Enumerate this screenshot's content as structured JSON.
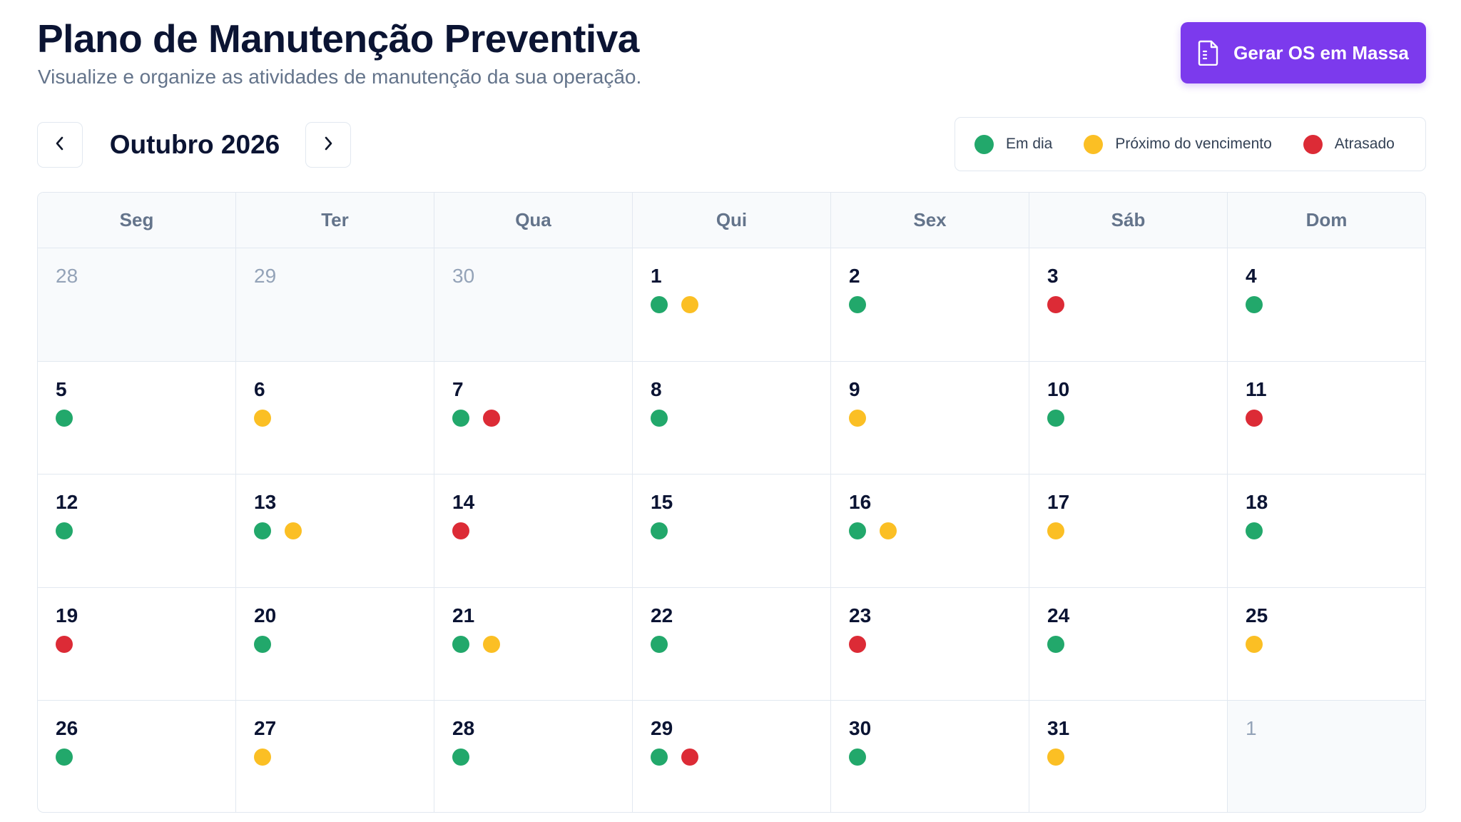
{
  "header": {
    "title": "Plano de Manutenção Preventiva",
    "subtitle": "Visualize e organize as atividades de manutenção da sua operação.",
    "primary_button": "Gerar OS em Massa"
  },
  "calendar_nav": {
    "month_label": "Outubro 2026",
    "prev_icon": "chevron-left-icon",
    "next_icon": "chevron-right-icon"
  },
  "legend": {
    "items": [
      {
        "key": "em_dia",
        "label": "Em dia",
        "color": "#22a86b"
      },
      {
        "key": "proximo",
        "label": "Próximo do vencimento",
        "color": "#fbbf24"
      },
      {
        "key": "atrasado",
        "label": "Atrasado",
        "color": "#dc2b36"
      }
    ]
  },
  "colors": {
    "accent": "#7c3aed",
    "em_dia": "#22a86b",
    "proximo": "#fbbf24",
    "atrasado": "#dc2b36"
  },
  "calendar": {
    "weekdays": [
      "Seg",
      "Ter",
      "Qua",
      "Qui",
      "Sex",
      "Sáb",
      "Dom"
    ],
    "weeks": [
      [
        {
          "day": "28",
          "outside": true,
          "status": []
        },
        {
          "day": "29",
          "outside": true,
          "status": []
        },
        {
          "day": "30",
          "outside": true,
          "status": []
        },
        {
          "day": "1",
          "outside": false,
          "status": [
            "em_dia",
            "proximo"
          ]
        },
        {
          "day": "2",
          "outside": false,
          "status": [
            "em_dia"
          ]
        },
        {
          "day": "3",
          "outside": false,
          "status": [
            "atrasado"
          ]
        },
        {
          "day": "4",
          "outside": false,
          "status": [
            "em_dia"
          ]
        }
      ],
      [
        {
          "day": "5",
          "outside": false,
          "status": [
            "em_dia"
          ]
        },
        {
          "day": "6",
          "outside": false,
          "status": [
            "proximo"
          ]
        },
        {
          "day": "7",
          "outside": false,
          "status": [
            "em_dia",
            "atrasado"
          ]
        },
        {
          "day": "8",
          "outside": false,
          "status": [
            "em_dia"
          ]
        },
        {
          "day": "9",
          "outside": false,
          "status": [
            "proximo"
          ]
        },
        {
          "day": "10",
          "outside": false,
          "status": [
            "em_dia"
          ]
        },
        {
          "day": "11",
          "outside": false,
          "status": [
            "atrasado"
          ]
        }
      ],
      [
        {
          "day": "12",
          "outside": false,
          "status": [
            "em_dia"
          ]
        },
        {
          "day": "13",
          "outside": false,
          "status": [
            "em_dia",
            "proximo"
          ]
        },
        {
          "day": "14",
          "outside": false,
          "status": [
            "atrasado"
          ]
        },
        {
          "day": "15",
          "outside": false,
          "status": [
            "em_dia"
          ]
        },
        {
          "day": "16",
          "outside": false,
          "status": [
            "em_dia",
            "proximo"
          ]
        },
        {
          "day": "17",
          "outside": false,
          "status": [
            "proximo"
          ]
        },
        {
          "day": "18",
          "outside": false,
          "status": [
            "em_dia"
          ]
        }
      ],
      [
        {
          "day": "19",
          "outside": false,
          "status": [
            "atrasado"
          ]
        },
        {
          "day": "20",
          "outside": false,
          "status": [
            "em_dia"
          ]
        },
        {
          "day": "21",
          "outside": false,
          "status": [
            "em_dia",
            "proximo"
          ]
        },
        {
          "day": "22",
          "outside": false,
          "status": [
            "em_dia"
          ]
        },
        {
          "day": "23",
          "outside": false,
          "status": [
            "atrasado"
          ]
        },
        {
          "day": "24",
          "outside": false,
          "status": [
            "em_dia"
          ]
        },
        {
          "day": "25",
          "outside": false,
          "status": [
            "proximo"
          ]
        }
      ],
      [
        {
          "day": "26",
          "outside": false,
          "status": [
            "em_dia"
          ]
        },
        {
          "day": "27",
          "outside": false,
          "status": [
            "proximo"
          ]
        },
        {
          "day": "28",
          "outside": false,
          "status": [
            "em_dia"
          ]
        },
        {
          "day": "29",
          "outside": false,
          "status": [
            "em_dia",
            "atrasado"
          ]
        },
        {
          "day": "30",
          "outside": false,
          "status": [
            "em_dia"
          ]
        },
        {
          "day": "31",
          "outside": false,
          "status": [
            "proximo"
          ]
        },
        {
          "day": "1",
          "outside": true,
          "status": []
        }
      ]
    ]
  }
}
